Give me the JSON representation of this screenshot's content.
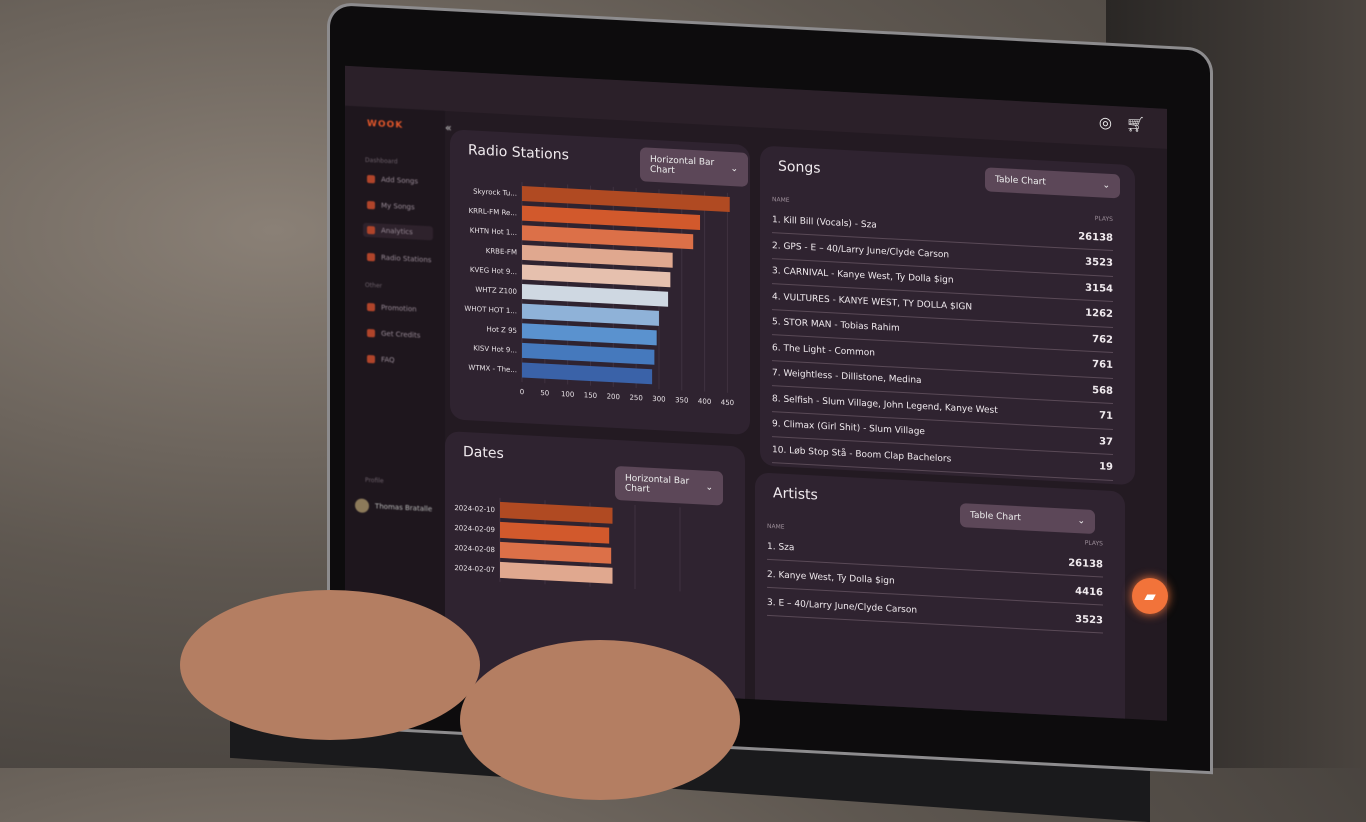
{
  "app": {
    "logo": "WOOK",
    "profile_section": "Profile",
    "user_name": "Thomas Bratalle"
  },
  "sidebar": {
    "section_main": "Dashboard",
    "section_other": "Other",
    "items": [
      {
        "label": "Add Songs"
      },
      {
        "label": "My Songs"
      },
      {
        "label": "Analytics",
        "active": true
      },
      {
        "label": "Radio Stations"
      },
      {
        "label": "Promotion"
      },
      {
        "label": "Get Credits"
      },
      {
        "label": "FAQ"
      }
    ]
  },
  "header": {
    "icons": [
      "support-icon",
      "cart-icon"
    ]
  },
  "radio": {
    "title": "Radio Stations",
    "chart_type": "Horizontal Bar Chart"
  },
  "dates": {
    "title": "Dates",
    "chart_type": "Horizontal Bar Chart"
  },
  "songs": {
    "title": "Songs",
    "chart_type": "Table Chart",
    "col_name": "NAME",
    "col_plays": "PLAYS",
    "rows": [
      {
        "name": "1. Kill Bill (Vocals) - Sza",
        "plays": "26138"
      },
      {
        "name": "2. GPS - E – 40/Larry June/Clyde Carson",
        "plays": "3523"
      },
      {
        "name": "3. CARNIVAL - Kanye West, Ty Dolla $ign",
        "plays": "3154"
      },
      {
        "name": "4. VULTURES - KANYE WEST, TY DOLLA $IGN",
        "plays": "1262"
      },
      {
        "name": "5. STOR MAN - Tobias Rahim",
        "plays": "762"
      },
      {
        "name": "6. The Light - Common",
        "plays": "761"
      },
      {
        "name": "7. Weightless - Dillistone, Medina",
        "plays": "568"
      },
      {
        "name": "8. Selfish - Slum Village, John Legend, Kanye West",
        "plays": "71"
      },
      {
        "name": "9. Climax (Girl Shit) - Slum Village",
        "plays": "37"
      },
      {
        "name": "10. Løb Stop Stå - Boom Clap Bachelors",
        "plays": "19"
      }
    ]
  },
  "artists": {
    "title": "Artists",
    "chart_type": "Table Chart",
    "col_name": "NAME",
    "col_plays": "PLAYS",
    "rows": [
      {
        "name": "1. Sza",
        "plays": "26138"
      },
      {
        "name": "2. Kanye West, Ty Dolla $ign",
        "plays": "4416"
      },
      {
        "name": "3. E – 40/Larry June/Clyde Carson",
        "plays": "3523"
      }
    ]
  },
  "colors": {
    "accent": "#e0562a",
    "fab": "#f2733a",
    "card": "#2f2330"
  },
  "chart_data": [
    {
      "type": "bar",
      "orientation": "horizontal",
      "categories": [
        "Skyrock Tu...",
        "KRRL-FM Re...",
        "KHTN Hot 1...",
        "KRBE-FM",
        "KVEG Hot 9...",
        "WHTZ Z100",
        "WHOT HOT 1...",
        "Hot Z 95",
        "KISV Hot 9...",
        "WTMX - The..."
      ],
      "values": [
        455,
        390,
        375,
        330,
        325,
        320,
        300,
        295,
        290,
        285
      ],
      "colors": [
        "#b04a22",
        "#d2592c",
        "#dc7048",
        "#e0a88f",
        "#e6c0ae",
        "#cfd8e2",
        "#8fb2d8",
        "#5a92cf",
        "#4579bd",
        "#3a62a8"
      ],
      "xticks": [
        0,
        50,
        100,
        150,
        200,
        250,
        300,
        350,
        400,
        450
      ],
      "xlim": [
        0,
        460
      ],
      "grid": true
    },
    {
      "type": "bar",
      "orientation": "horizontal",
      "categories": [
        "2024-02-10",
        "2024-02-09",
        "2024-02-08",
        "2024-02-07"
      ],
      "values": [
        170,
        165,
        168,
        170
      ],
      "colors": [
        "#b04a22",
        "#d2592c",
        "#dc7048",
        "#e0a88f"
      ],
      "grid": true
    }
  ]
}
